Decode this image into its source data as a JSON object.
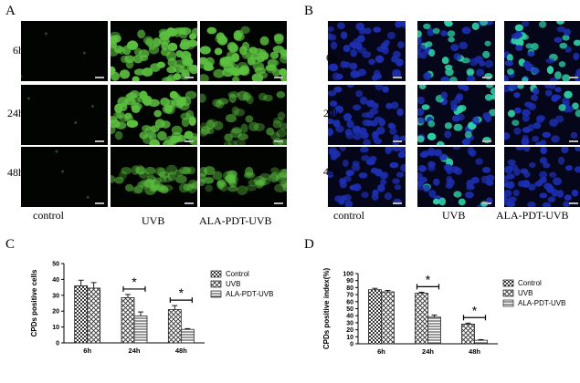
{
  "panel_labels": {
    "a": "A",
    "b": "B",
    "c": "C",
    "d": "D"
  },
  "microscopy": {
    "row_labels": [
      "6h",
      "24h",
      "48h"
    ],
    "columns": [
      "control",
      "UVB",
      "ALA-PDT-UVB"
    ]
  },
  "colors": {
    "green_fluor": "#5cc040",
    "blue_nuclei": "#1d2fb0",
    "cyan_nuclei": "#2fd0a6"
  },
  "chart_data": [
    {
      "type": "bar",
      "panel": "C",
      "categories": [
        "6h",
        "24h",
        "48h"
      ],
      "ylabel": "CPDs positive cells",
      "ylim": [
        0,
        50
      ],
      "yticks": [
        0,
        10,
        20,
        30,
        40,
        50
      ],
      "series": [
        {
          "name": "Control",
          "values": [
            36,
            null,
            null
          ],
          "errors": [
            3.5,
            null,
            null
          ]
        },
        {
          "name": "UVB",
          "values": [
            34.5,
            28.5,
            21
          ],
          "errors": [
            3.5,
            2,
            2.5
          ]
        },
        {
          "name": "ALA-PDT-UVB",
          "values": [
            null,
            17,
            8.5
          ],
          "errors": [
            null,
            2.5,
            0.5
          ]
        }
      ],
      "significance": [
        {
          "category": "24h",
          "label": "*"
        },
        {
          "category": "48h",
          "label": "*"
        }
      ],
      "legend_position": "right"
    },
    {
      "type": "bar",
      "panel": "D",
      "categories": [
        "6h",
        "24h",
        "48h"
      ],
      "ylabel": "CPDs positive index(%)",
      "ylim": [
        0,
        100
      ],
      "yticks": [
        0,
        10,
        20,
        30,
        40,
        50,
        60,
        70,
        80,
        90,
        100
      ],
      "series": [
        {
          "name": "Control",
          "values": [
            77,
            null,
            null
          ],
          "errors": [
            2,
            null,
            null
          ]
        },
        {
          "name": "UVB",
          "values": [
            74,
            72,
            28
          ],
          "errors": [
            2,
            1.5,
            1.5
          ]
        },
        {
          "name": "ALA-PDT-UVB",
          "values": [
            null,
            38,
            5
          ],
          "errors": [
            null,
            3,
            1
          ]
        }
      ],
      "significance": [
        {
          "category": "24h",
          "label": "*"
        },
        {
          "category": "48h",
          "label": "*"
        }
      ],
      "legend_position": "right"
    }
  ]
}
